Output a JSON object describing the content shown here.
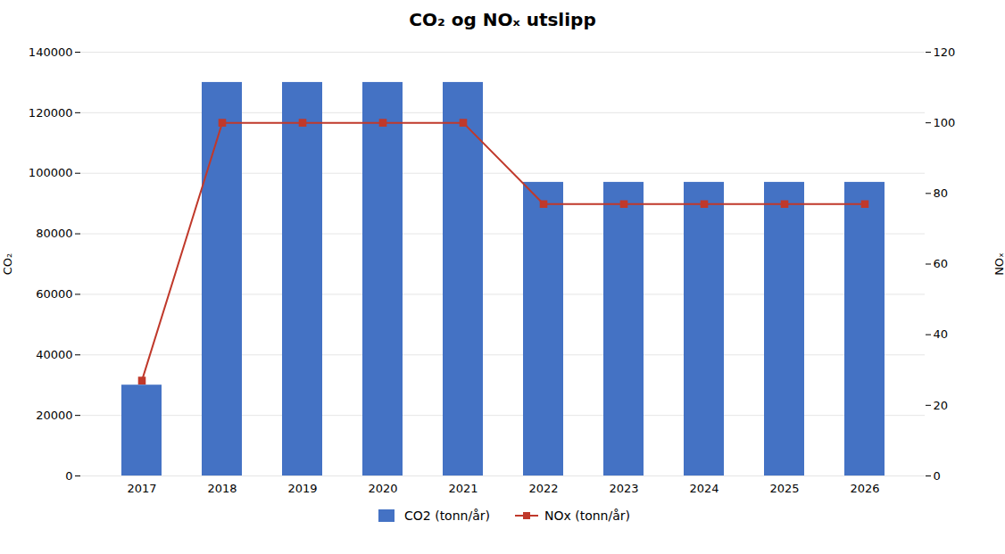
{
  "chart_data": {
    "type": "bar",
    "title": "CO₂ og NOₓ utslipp",
    "categories": [
      "2017",
      "2018",
      "2019",
      "2020",
      "2021",
      "2022",
      "2023",
      "2024",
      "2025",
      "2026"
    ],
    "series": [
      {
        "name": "CO2 (tonn/år)",
        "type": "bar",
        "color": "#4472C4",
        "values": [
          30000,
          130000,
          130000,
          130000,
          130000,
          97000,
          97000,
          97000,
          97000,
          97000
        ]
      },
      {
        "name": "NOx (tonn/år)",
        "type": "line",
        "color": "#C0392B",
        "marker": "square",
        "axis": "y2",
        "values": [
          27,
          100,
          100,
          100,
          100,
          77,
          77,
          77,
          77,
          77
        ]
      }
    ],
    "ylabel": "CO₂",
    "y2label": "NOₓ",
    "ylim": [
      0,
      140000
    ],
    "yticks": [
      0,
      20000,
      40000,
      60000,
      80000,
      100000,
      120000,
      140000
    ],
    "y2lim": [
      0,
      120
    ],
    "y2ticks": [
      0,
      20,
      40,
      60,
      80,
      100,
      120
    ],
    "grid": true,
    "legend": "bottom"
  }
}
